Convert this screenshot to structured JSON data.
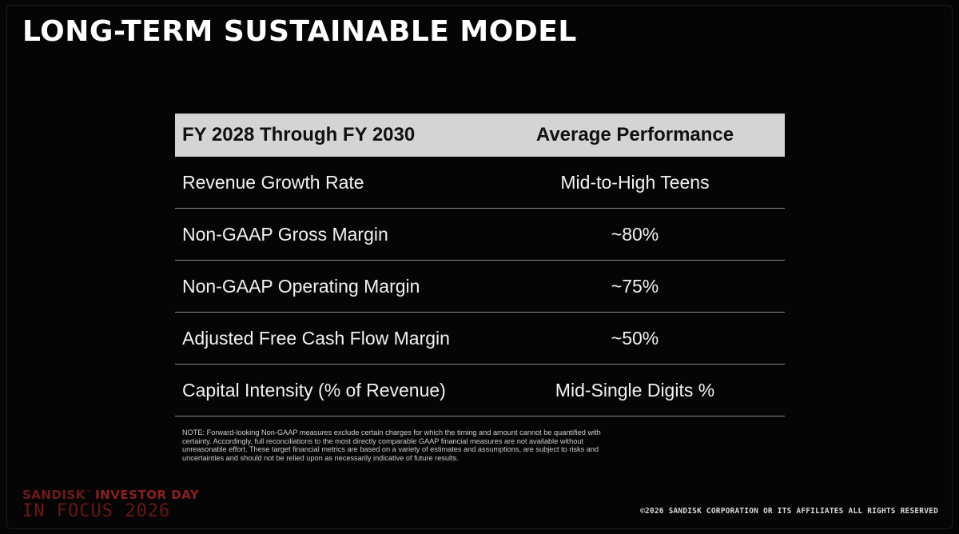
{
  "slide": {
    "title": "LONG-TERM SUSTAINABLE MODEL"
  },
  "table": {
    "header": {
      "col1": "FY 2028 Through FY 2030",
      "col2": "Average Performance"
    },
    "rows": [
      {
        "metric": "Revenue Growth Rate",
        "value": "Mid-to-High Teens"
      },
      {
        "metric": "Non-GAAP Gross Margin",
        "value": "~80%"
      },
      {
        "metric": "Non-GAAP Operating Margin",
        "value": "~75%"
      },
      {
        "metric": "Adjusted Free Cash Flow Margin",
        "value": "~50%"
      },
      {
        "metric": "Capital Intensity (% of Revenue)",
        "value": "Mid-Single Digits %"
      }
    ]
  },
  "note": "NOTE: Forward-looking Non-GAAP measures exclude certain charges for which the timing and amount cannot be quantified with certainty. Accordingly, full reconciliations to the most directly comparable GAAP financial measures are not available without unreasonable effort. These target financial metrics are based on a variety of estimates and assumptions, are subject to risks and uncertainties and should not be relied upon as necessarily indicative of future results.",
  "footer": {
    "brand_name": "SANDISK",
    "brand_event": "INVESTOR DAY",
    "brand_tagline": "IN FOCUS 2026",
    "copyright": "©2026 SANDISK CORPORATION OR ITS AFFILIATES ALL RIGHTS RESERVED"
  },
  "colors": {
    "background": "#050505",
    "header_fill": "#d4d4d4",
    "row_divider": "#8a8a8a",
    "brand_red": "#7a1c1c"
  }
}
